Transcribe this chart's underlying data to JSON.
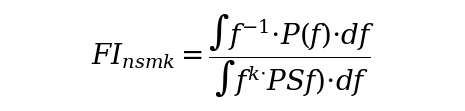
{
  "background_color": "#ffffff",
  "figsize": [
    4.65,
    1.11
  ],
  "dpi": 100,
  "font_size_main": 20,
  "text_color": "#000000"
}
